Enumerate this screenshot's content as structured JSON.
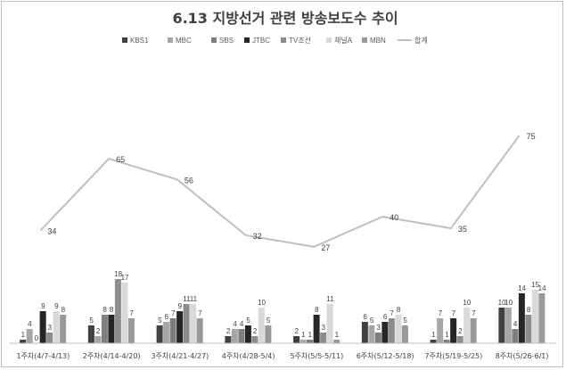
{
  "chart_data": {
    "type": "bar",
    "title": "6.13 지방선거 관련 방송보도수 추이",
    "categories": [
      "1주차(4/7-4/13)",
      "2주차(4/14-4/20)",
      "3주차(4/21-4/27)",
      "4주차(4/28-5/4)",
      "5주차(5/5-5/11)",
      "6주차(5/12-5/18)",
      "7주차(5/19-5/25)",
      "8주차(5/26-6/1)"
    ],
    "series": [
      {
        "name": "KBS1",
        "color": "#404040",
        "values": [
          1,
          5,
          5,
          2,
          2,
          6,
          1,
          10
        ]
      },
      {
        "name": "MBC",
        "color": "#a6a6a6",
        "values": [
          4,
          2,
          6,
          4,
          1,
          5,
          7,
          10
        ]
      },
      {
        "name": "SBS",
        "color": "#7f7f7f",
        "values": [
          0,
          8,
          7,
          4,
          1,
          3,
          1,
          4
        ]
      },
      {
        "name": "JTBC",
        "color": "#262626",
        "values": [
          9,
          8,
          9,
          5,
          8,
          6,
          7,
          14
        ]
      },
      {
        "name": "TV조선",
        "color": "#8c8c8c",
        "values": [
          3,
          18,
          11,
          2,
          3,
          7,
          2,
          8
        ]
      },
      {
        "name": "채널A",
        "color": "#d9d9d9",
        "values": [
          9,
          17,
          11,
          10,
          11,
          8,
          10,
          15
        ]
      },
      {
        "name": "MBN",
        "color": "#999999",
        "values": [
          8,
          7,
          7,
          5,
          1,
          5,
          7,
          14
        ]
      }
    ],
    "line_series": {
      "name": "합계",
      "color": "#bfbfbf",
      "values": [
        34,
        65,
        56,
        32,
        27,
        40,
        35,
        75
      ]
    },
    "legend_position": "top",
    "grid": false
  }
}
